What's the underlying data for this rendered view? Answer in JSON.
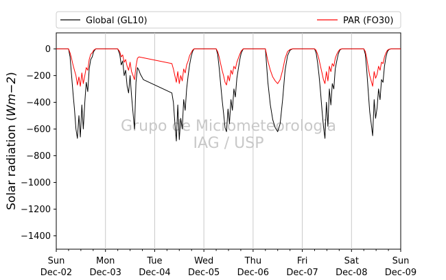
{
  "chart_data": {
    "type": "line",
    "title": "",
    "xlabel": "",
    "ylabel": "Solar radiation (Wm−2)",
    "ylabel_main": "Solar radiation (",
    "ylabel_unit": "Wm",
    "ylabel_exp": "−2",
    "ylabel_close": ")",
    "ylim": [
      -1500,
      120
    ],
    "xlim": [
      0,
      7
    ],
    "grid": "vertical",
    "legend_position": "top",
    "yticks": [
      0,
      -200,
      -400,
      -600,
      -800,
      -1000,
      -1200,
      -1400
    ],
    "ytick_labels": [
      "0",
      "−200",
      "−400",
      "−600",
      "−800",
      "−1000",
      "−1200",
      "−1400"
    ],
    "xticks": [
      {
        "x": 0,
        "day": "Sun",
        "date": "Dec-02"
      },
      {
        "x": 1,
        "day": "Mon",
        "date": "Dec-03"
      },
      {
        "x": 2,
        "day": "Tue",
        "date": "Dec-04"
      },
      {
        "x": 3,
        "day": "Wed",
        "date": "Dec-05"
      },
      {
        "x": 4,
        "day": "Thu",
        "date": "Dec-06"
      },
      {
        "x": 5,
        "day": "Fri",
        "date": "Dec-07"
      },
      {
        "x": 6,
        "day": "Sat",
        "date": "Dec-08"
      },
      {
        "x": 7,
        "day": "Sun",
        "date": "Dec-09"
      }
    ],
    "watermark": [
      "Grupo de Micrometeorologia",
      "IAG / USP"
    ],
    "series": [
      {
        "name": "Global (GL10)",
        "color": "#000000",
        "x": [
          0,
          0.25,
          0.28,
          0.31,
          0.34,
          0.37,
          0.4,
          0.43,
          0.46,
          0.49,
          0.52,
          0.55,
          0.58,
          0.61,
          0.64,
          0.67,
          0.7,
          0.73,
          0.76,
          0.8,
          1.25,
          1.29,
          1.32,
          1.35,
          1.38,
          1.41,
          1.44,
          1.47,
          1.5,
          1.53,
          1.56,
          1.59,
          1.62,
          1.65,
          1.68,
          1.71,
          1.74,
          1.77,
          2.35,
          2.38,
          2.41,
          2.44,
          2.47,
          2.5,
          2.53,
          2.56,
          2.59,
          2.62,
          2.65,
          2.68,
          2.71,
          2.74,
          2.77,
          2.8,
          3.25,
          3.28,
          3.31,
          3.34,
          3.37,
          3.4,
          3.43,
          3.46,
          3.49,
          3.52,
          3.55,
          3.58,
          3.61,
          3.64,
          3.67,
          3.7,
          3.73,
          3.76,
          3.8,
          4.25,
          4.3,
          4.35,
          4.4,
          4.45,
          4.5,
          4.55,
          4.6,
          4.65,
          4.7,
          4.75,
          4.8,
          5.25,
          5.28,
          5.31,
          5.34,
          5.37,
          5.4,
          5.43,
          5.46,
          5.49,
          5.52,
          5.55,
          5.58,
          5.61,
          5.64,
          5.67,
          5.7,
          5.73,
          5.76,
          5.8,
          6.25,
          6.28,
          6.31,
          6.34,
          6.37,
          6.4,
          6.43,
          6.46,
          6.49,
          6.52,
          6.55,
          6.58,
          6.61,
          6.64,
          6.67,
          6.7,
          6.73,
          6.76,
          6.8,
          7.0
        ],
        "y": [
          0,
          0,
          -60,
          -190,
          -330,
          -450,
          -600,
          -670,
          -500,
          -660,
          -420,
          -600,
          -400,
          -250,
          -320,
          -150,
          -80,
          -60,
          -20,
          0,
          0,
          -40,
          -120,
          -90,
          -200,
          -160,
          -280,
          -330,
          -200,
          -350,
          -480,
          -600,
          -250,
          -140,
          -160,
          -190,
          -210,
          -230,
          -330,
          -400,
          -550,
          -690,
          -420,
          -680,
          -520,
          -600,
          -380,
          -460,
          -300,
          -200,
          -120,
          -60,
          -20,
          0,
          0,
          -40,
          -140,
          -260,
          -380,
          -480,
          -590,
          -620,
          -450,
          -560,
          -380,
          -460,
          -300,
          -360,
          -220,
          -150,
          -80,
          -30,
          0,
          0,
          -250,
          -420,
          -530,
          -590,
          -620,
          -560,
          -380,
          -160,
          -50,
          -10,
          0,
          0,
          -30,
          -100,
          -200,
          -320,
          -460,
          -580,
          -670,
          -400,
          -580,
          -300,
          -420,
          -260,
          -300,
          -150,
          -90,
          -40,
          -10,
          0,
          0,
          -40,
          -160,
          -320,
          -470,
          -560,
          -650,
          -380,
          -520,
          -440,
          -300,
          -380,
          -230,
          -250,
          -130,
          -60,
          -20,
          -5,
          0,
          0
        ]
      },
      {
        "name": "PAR (FO30)",
        "color": "#ff0000",
        "x": [
          0,
          0.25,
          0.28,
          0.31,
          0.34,
          0.37,
          0.4,
          0.43,
          0.46,
          0.49,
          0.52,
          0.55,
          0.58,
          0.61,
          0.64,
          0.67,
          0.7,
          0.73,
          0.76,
          0.8,
          1.25,
          1.29,
          1.32,
          1.35,
          1.38,
          1.41,
          1.44,
          1.47,
          1.5,
          1.53,
          1.56,
          1.59,
          1.62,
          1.65,
          1.68,
          2.35,
          2.38,
          2.41,
          2.44,
          2.47,
          2.5,
          2.53,
          2.56,
          2.59,
          2.62,
          2.65,
          2.68,
          2.71,
          2.74,
          2.77,
          2.8,
          3.25,
          3.28,
          3.31,
          3.34,
          3.37,
          3.4,
          3.43,
          3.46,
          3.49,
          3.52,
          3.55,
          3.58,
          3.61,
          3.64,
          3.67,
          3.7,
          3.73,
          3.76,
          3.8,
          4.25,
          4.3,
          4.35,
          4.4,
          4.45,
          4.5,
          4.55,
          4.6,
          4.65,
          4.7,
          4.75,
          4.8,
          5.25,
          5.28,
          5.31,
          5.34,
          5.37,
          5.4,
          5.43,
          5.46,
          5.49,
          5.52,
          5.55,
          5.58,
          5.61,
          5.64,
          5.67,
          5.7,
          5.73,
          5.76,
          5.8,
          6.25,
          6.28,
          6.31,
          6.34,
          6.37,
          6.4,
          6.43,
          6.46,
          6.49,
          6.52,
          6.55,
          6.58,
          6.61,
          6.64,
          6.67,
          6.7,
          6.73,
          6.76,
          6.8,
          7.0
        ],
        "y": [
          0,
          0,
          -30,
          -70,
          -120,
          -160,
          -200,
          -270,
          -210,
          -280,
          -180,
          -260,
          -200,
          -140,
          -160,
          -80,
          -40,
          -30,
          -10,
          0,
          0,
          -20,
          -60,
          -45,
          -100,
          -80,
          -130,
          -160,
          -100,
          -170,
          -200,
          -230,
          -130,
          -70,
          -60,
          -110,
          -150,
          -200,
          -250,
          -170,
          -260,
          -200,
          -240,
          -150,
          -180,
          -120,
          -90,
          -50,
          -30,
          -10,
          0,
          0,
          -20,
          -60,
          -110,
          -160,
          -200,
          -250,
          -270,
          -200,
          -240,
          -160,
          -190,
          -130,
          -150,
          -100,
          -70,
          -40,
          -15,
          0,
          0,
          -90,
          -160,
          -210,
          -240,
          -260,
          -230,
          -160,
          -70,
          -20,
          -5,
          0,
          0,
          -10,
          -40,
          -80,
          -130,
          -180,
          -230,
          -260,
          -170,
          -240,
          -130,
          -170,
          -110,
          -130,
          -70,
          -40,
          -20,
          -5,
          0,
          0,
          -20,
          -70,
          -140,
          -200,
          -240,
          -280,
          -170,
          -220,
          -190,
          -130,
          -160,
          -100,
          -110,
          -60,
          -30,
          -10,
          -3,
          0,
          0
        ]
      }
    ]
  }
}
